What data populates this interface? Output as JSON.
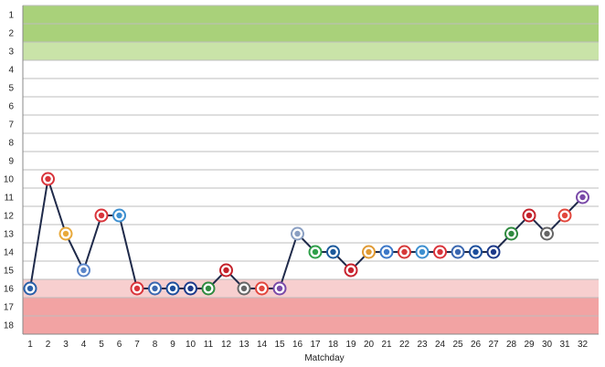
{
  "chart_data": {
    "type": "line",
    "xlabel": "Matchday",
    "ylabel": "",
    "x": [
      1,
      2,
      3,
      4,
      5,
      6,
      7,
      8,
      9,
      10,
      11,
      12,
      13,
      14,
      15,
      16,
      17,
      18,
      19,
      20,
      21,
      22,
      23,
      24,
      25,
      26,
      27,
      28,
      29,
      30,
      31,
      32
    ],
    "ylim": [
      1,
      18
    ],
    "y_inverted": true,
    "grid": true,
    "series": [
      {
        "values": [
          16,
          10,
          13,
          15,
          12,
          12,
          16,
          16,
          16,
          16,
          16,
          15,
          16,
          16,
          16,
          13,
          14,
          14,
          15,
          14,
          14,
          14,
          14,
          14,
          14,
          14,
          14,
          13,
          12,
          13,
          12,
          11
        ]
      }
    ],
    "zones": [
      {
        "from": 1,
        "to": 2,
        "color": "#a9d17a"
      },
      {
        "from": 3,
        "to": 3,
        "color": "#c9e3a8"
      },
      {
        "from": 16,
        "to": 16,
        "color": "#f7cfcf"
      },
      {
        "from": 17,
        "to": 18,
        "color": "#f2a3a3"
      }
    ],
    "colors": {
      "line": "#1f2a4a",
      "grid": "#bdbdbd",
      "axis": "#888888"
    },
    "marker_icons": [
      "crest",
      "crest",
      "crest",
      "crest",
      "crest",
      "crest",
      "crest",
      "crest",
      "crest",
      "crest",
      "crest",
      "crest",
      "crest",
      "crest",
      "crest",
      "crest",
      "crest",
      "crest",
      "crest",
      "crest",
      "crest",
      "crest",
      "crest",
      "crest",
      "crest",
      "crest",
      "crest",
      "crest",
      "crest",
      "crest",
      "crest",
      "crest"
    ],
    "marker_colors": [
      "#2a5fa8",
      "#d9343b",
      "#e8a93b",
      "#5b86c9",
      "#d9343b",
      "#3d8fd0",
      "#d9343b",
      "#3a67b0",
      "#1d4f9c",
      "#1d3a8a",
      "#2f8a3f",
      "#c4222b",
      "#666666",
      "#e2473d",
      "#7a4aa8",
      "#8a9fc2",
      "#2fa04a",
      "#1c5a9c",
      "#c8222e",
      "#e09a34",
      "#3c78c8",
      "#d63a3a",
      "#3d8fd0",
      "#d9343b",
      "#3a67b0",
      "#1d4f9c",
      "#1d3a8a",
      "#2f8a3f",
      "#c4222b",
      "#666666",
      "#e2473d",
      "#7a4aa8"
    ]
  }
}
